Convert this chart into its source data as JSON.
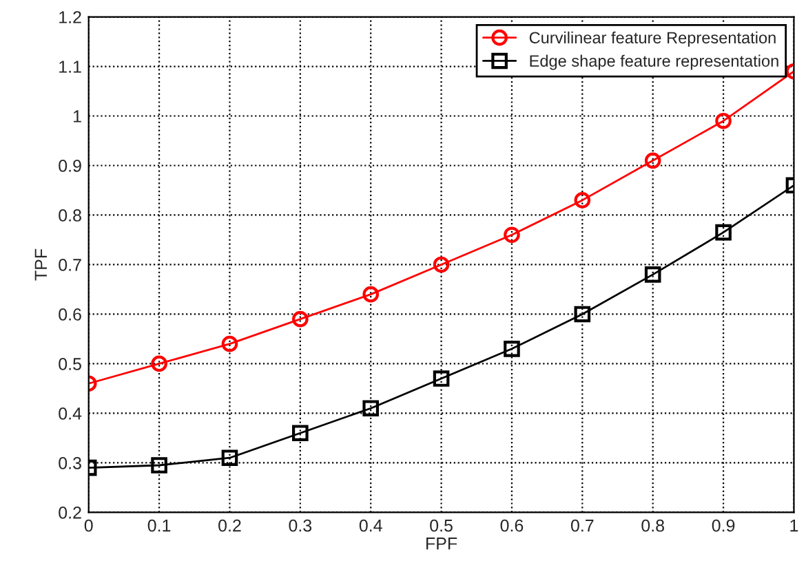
{
  "chart_data": {
    "type": "line",
    "xlabel": "FPF",
    "ylabel": "TPF",
    "x": [
      0,
      0.1,
      0.2,
      0.3,
      0.4,
      0.5,
      0.6,
      0.7,
      0.8,
      0.9,
      1.0
    ],
    "series": [
      {
        "name": "Curvilinear feature Representation",
        "color": "#ff0000",
        "marker": "circle",
        "values": [
          0.46,
          0.5,
          0.54,
          0.59,
          0.64,
          0.7,
          0.76,
          0.83,
          0.91,
          0.99,
          1.09
        ]
      },
      {
        "name": "Edge shape feature representation",
        "color": "#000000",
        "marker": "square",
        "values": [
          0.29,
          0.295,
          0.31,
          0.36,
          0.41,
          0.47,
          0.53,
          0.6,
          0.68,
          0.765,
          0.86
        ]
      }
    ],
    "xlim": [
      0,
      1
    ],
    "ylim": [
      0.2,
      1.2
    ],
    "xticks": [
      0,
      0.1,
      0.2,
      0.3,
      0.4,
      0.5,
      0.6,
      0.7,
      0.8,
      0.9,
      1
    ],
    "yticks": [
      0.2,
      0.3,
      0.4,
      0.5,
      0.6,
      0.7,
      0.8,
      0.9,
      1,
      1.1,
      1.2
    ],
    "grid": true,
    "legend": "top right",
    "line_style": "solid"
  }
}
